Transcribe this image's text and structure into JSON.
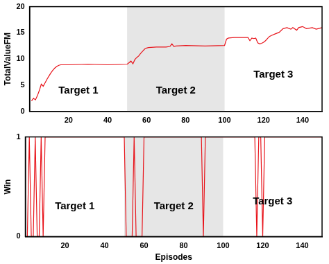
{
  "chart_data": [
    {
      "type": "line",
      "y_label": "TotalValueFM",
      "color": "#e8141b",
      "grid": false,
      "xlim": [
        0,
        150
      ],
      "xticks": [
        20,
        40,
        60,
        80,
        100,
        120,
        140
      ],
      "ylim": [
        0,
        20
      ],
      "yticks": [
        0,
        5,
        10,
        15,
        20
      ],
      "highlight": [
        50,
        100
      ],
      "annotations": [
        {
          "text": "Target 1",
          "x": 25,
          "y": 4
        },
        {
          "text": "Target 2",
          "x": 75,
          "y": 4
        },
        {
          "text": "Target 3",
          "x": 125,
          "y": 7
        }
      ],
      "x": [
        1,
        2,
        3,
        4,
        5,
        6,
        7,
        8,
        9,
        10,
        11,
        12,
        13,
        14,
        15,
        16,
        20,
        30,
        40,
        50,
        51,
        52,
        53,
        54,
        55,
        56,
        57,
        58,
        59,
        60,
        61,
        65,
        70,
        72,
        73,
        74,
        75,
        80,
        90,
        100,
        101,
        102,
        105,
        110,
        112,
        113,
        114,
        115,
        116,
        117,
        118,
        119,
        120,
        121,
        122,
        123,
        124,
        126,
        128,
        130,
        132,
        134,
        135,
        137,
        138,
        140,
        142,
        145,
        147,
        150
      ],
      "values": [
        2,
        2.5,
        2.2,
        3,
        4,
        5.2,
        4.8,
        5.5,
        6.2,
        6.8,
        7.4,
        7.9,
        8.3,
        8.6,
        8.8,
        8.9,
        8.9,
        9,
        8.9,
        9,
        9.3,
        9.6,
        9.1,
        9.9,
        10.3,
        10.6,
        11.1,
        11.5,
        11.9,
        12.1,
        12.2,
        12.3,
        12.3,
        12.4,
        12.9,
        12.4,
        12.5,
        12.6,
        12.5,
        12.6,
        13.8,
        14,
        14.1,
        14.1,
        14.1,
        13.5,
        14,
        13.9,
        14,
        13.1,
        12.9,
        13,
        13.2,
        13.5,
        13.9,
        14.3,
        14.5,
        14.8,
        15.1,
        15.8,
        16,
        15.7,
        16,
        15.5,
        16,
        16.2,
        15.8,
        16,
        15.7,
        16
      ]
    },
    {
      "type": "line",
      "x_label": "Episodes",
      "y_label": "Win",
      "color": "#e8141b",
      "grid": false,
      "xlim": [
        0,
        150
      ],
      "xticks": [
        20,
        40,
        60,
        80,
        100,
        120,
        140
      ],
      "ylim": [
        0,
        1
      ],
      "yticks": [
        0,
        1
      ],
      "highlight": [
        50,
        100
      ],
      "annotations": [
        {
          "text": "Target 1",
          "x": 25,
          "y": 0.3
        },
        {
          "text": "Target 2",
          "x": 75,
          "y": 0.3
        },
        {
          "text": "Target 3",
          "x": 125,
          "y": 0.35
        }
      ],
      "x": [
        1,
        2,
        3,
        4,
        5,
        6,
        7,
        8,
        9,
        10,
        11,
        50,
        51,
        52,
        53,
        54,
        55,
        56,
        57,
        58,
        59,
        60,
        89,
        90,
        91,
        116,
        117,
        118,
        119,
        120,
        121,
        150
      ],
      "values": [
        0,
        1,
        0,
        0,
        1,
        0,
        0,
        1,
        0,
        1,
        1,
        1,
        0,
        0,
        0,
        0,
        1,
        0,
        0,
        0,
        0,
        1,
        1,
        0,
        1,
        1,
        0,
        1,
        1,
        0,
        1,
        1
      ]
    }
  ]
}
